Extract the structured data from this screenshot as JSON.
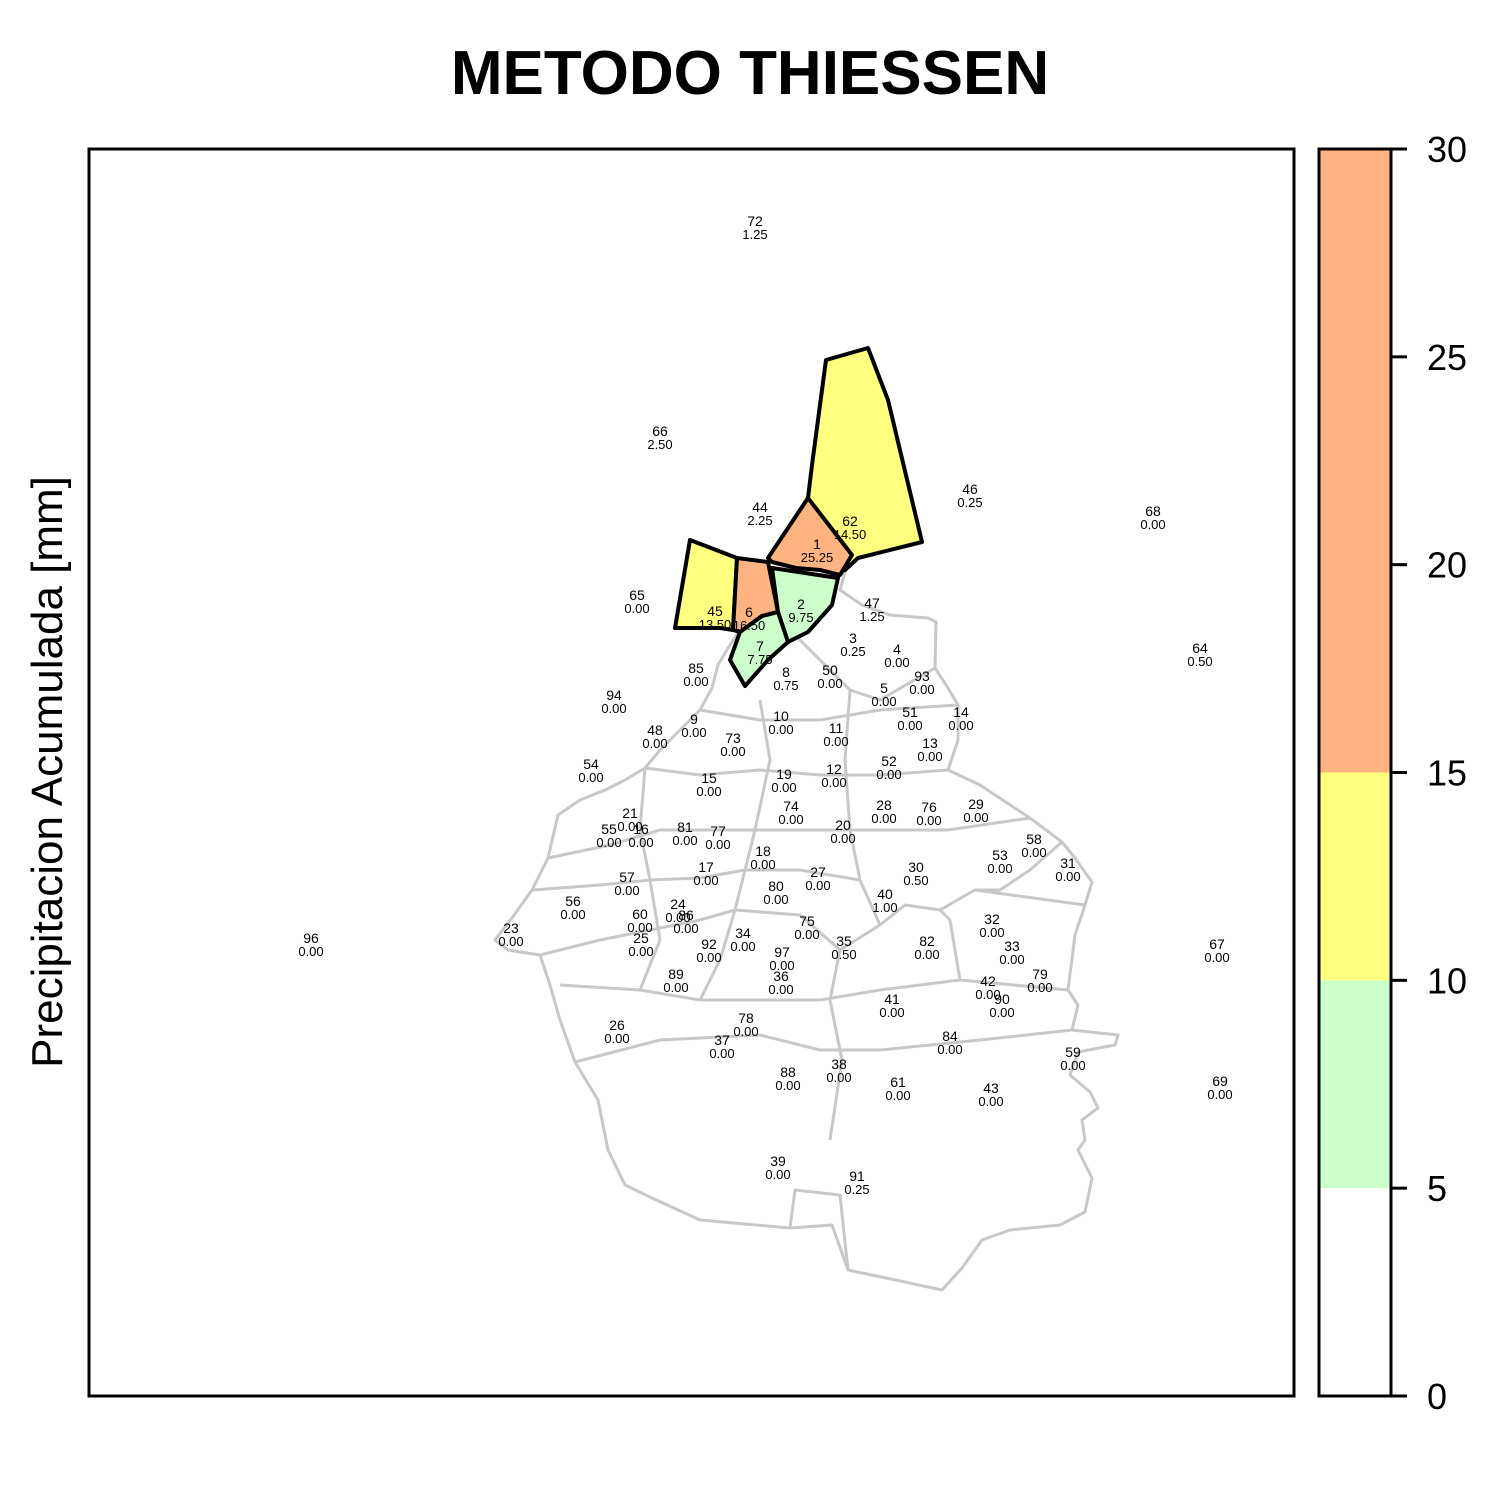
{
  "title": "METODO THIESSEN",
  "legend_label": "Precipitacion Acumulada [mm]",
  "chart_data": {
    "type": "choropleth-map",
    "method": "Thiessen",
    "title": "METODO THIESSEN",
    "color_scale": {
      "range": [
        0,
        30
      ],
      "ticks": [
        "0",
        "5",
        "10",
        "15",
        "20",
        "25",
        "30"
      ],
      "bands": [
        {
          "from": 0,
          "to": 5,
          "color": "#ffffff"
        },
        {
          "from": 5,
          "to": 10,
          "color": "#ccffcc"
        },
        {
          "from": 10,
          "to": 15,
          "color": "#ffff80"
        },
        {
          "from": 15,
          "to": 30,
          "color": "#ffb380"
        }
      ]
    },
    "stations": [
      {
        "id": "72",
        "value": "1.25"
      },
      {
        "id": "66",
        "value": "2.50"
      },
      {
        "id": "44",
        "value": "2.25"
      },
      {
        "id": "62",
        "value": "14.50"
      },
      {
        "id": "1",
        "value": "25.25"
      },
      {
        "id": "46",
        "value": "0.25"
      },
      {
        "id": "68",
        "value": "0.00"
      },
      {
        "id": "65",
        "value": "0.00"
      },
      {
        "id": "45",
        "value": "13.50"
      },
      {
        "id": "6",
        "value": "16.50"
      },
      {
        "id": "2",
        "value": "9.75"
      },
      {
        "id": "47",
        "value": "1.25"
      },
      {
        "id": "3",
        "value": "0.25"
      },
      {
        "id": "4",
        "value": "0.00"
      },
      {
        "id": "7",
        "value": "7.75"
      },
      {
        "id": "64",
        "value": "0.50"
      },
      {
        "id": "85",
        "value": "0.00"
      },
      {
        "id": "8",
        "value": "0.75"
      },
      {
        "id": "50",
        "value": "0.00"
      },
      {
        "id": "93",
        "value": "0.00"
      },
      {
        "id": "5",
        "value": "0.00"
      },
      {
        "id": "94",
        "value": "0.00"
      },
      {
        "id": "9",
        "value": "0.00"
      },
      {
        "id": "10",
        "value": "0.00"
      },
      {
        "id": "51",
        "value": "0.00"
      },
      {
        "id": "14",
        "value": "0.00"
      },
      {
        "id": "48",
        "value": "0.00"
      },
      {
        "id": "73",
        "value": "0.00"
      },
      {
        "id": "11",
        "value": "0.00"
      },
      {
        "id": "13",
        "value": "0.00"
      },
      {
        "id": "54",
        "value": "0.00"
      },
      {
        "id": "52",
        "value": "0.00"
      },
      {
        "id": "15",
        "value": "0.00"
      },
      {
        "id": "19",
        "value": "0.00"
      },
      {
        "id": "12",
        "value": "0.00"
      },
      {
        "id": "28",
        "value": "0.00"
      },
      {
        "id": "76",
        "value": "0.00"
      },
      {
        "id": "29",
        "value": "0.00"
      },
      {
        "id": "21",
        "value": "0.00"
      },
      {
        "id": "74",
        "value": "0.00"
      },
      {
        "id": "55",
        "value": "0.00"
      },
      {
        "id": "16",
        "value": "0.00"
      },
      {
        "id": "81",
        "value": "0.00"
      },
      {
        "id": "77",
        "value": "0.00"
      },
      {
        "id": "20",
        "value": "0.00"
      },
      {
        "id": "58",
        "value": "0.00"
      },
      {
        "id": "18",
        "value": "0.00"
      },
      {
        "id": "53",
        "value": "0.00"
      },
      {
        "id": "31",
        "value": "0.00"
      },
      {
        "id": "57",
        "value": "0.00"
      },
      {
        "id": "17",
        "value": "0.00"
      },
      {
        "id": "27",
        "value": "0.00"
      },
      {
        "id": "30",
        "value": "0.50"
      },
      {
        "id": "80",
        "value": "0.00"
      },
      {
        "id": "40",
        "value": "1.00"
      },
      {
        "id": "56",
        "value": "0.00"
      },
      {
        "id": "24",
        "value": "0.00"
      },
      {
        "id": "86",
        "value": "0.00"
      },
      {
        "id": "60",
        "value": "0.00"
      },
      {
        "id": "75",
        "value": "0.00"
      },
      {
        "id": "32",
        "value": "0.00"
      },
      {
        "id": "23",
        "value": "0.00"
      },
      {
        "id": "34",
        "value": "0.00"
      },
      {
        "id": "96",
        "value": "0.00"
      },
      {
        "id": "25",
        "value": "0.00"
      },
      {
        "id": "92",
        "value": "0.00"
      },
      {
        "id": "35",
        "value": "0.50"
      },
      {
        "id": "82",
        "value": "0.00"
      },
      {
        "id": "33",
        "value": "0.00"
      },
      {
        "id": "67",
        "value": "0.00"
      },
      {
        "id": "97",
        "value": "0.00"
      },
      {
        "id": "79",
        "value": "0.00"
      },
      {
        "id": "89",
        "value": "0.00"
      },
      {
        "id": "36",
        "value": "0.00"
      },
      {
        "id": "42",
        "value": "0.00"
      },
      {
        "id": "41",
        "value": "0.00"
      },
      {
        "id": "90",
        "value": "0.00"
      },
      {
        "id": "26",
        "value": "0.00"
      },
      {
        "id": "78",
        "value": "0.00"
      },
      {
        "id": "84",
        "value": "0.00"
      },
      {
        "id": "37",
        "value": "0.00"
      },
      {
        "id": "59",
        "value": "0.00"
      },
      {
        "id": "38",
        "value": "0.00"
      },
      {
        "id": "88",
        "value": "0.00"
      },
      {
        "id": "61",
        "value": "0.00"
      },
      {
        "id": "43",
        "value": "0.00"
      },
      {
        "id": "69",
        "value": "0.00"
      },
      {
        "id": "39",
        "value": "0.00"
      },
      {
        "id": "91",
        "value": "0.25"
      }
    ]
  }
}
